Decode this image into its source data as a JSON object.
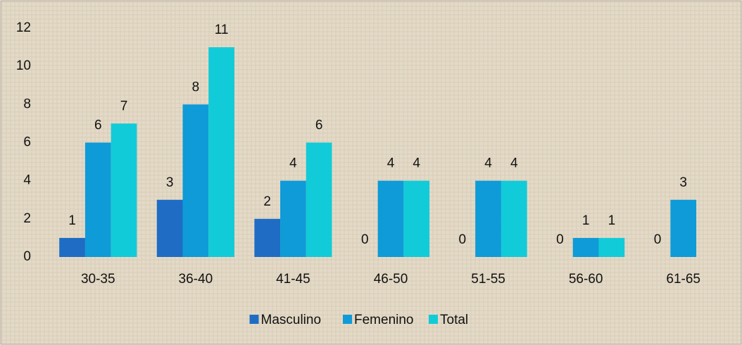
{
  "chart_data": {
    "type": "bar",
    "categories": [
      "30-35",
      "36-40",
      "41-45",
      "46-50",
      "51-55",
      "56-60",
      "61-65"
    ],
    "series": [
      {
        "name": "Masculino",
        "color": "#1f6cc4",
        "values": [
          1,
          3,
          2,
          0,
          0,
          0,
          0
        ]
      },
      {
        "name": "Femenino",
        "color": "#0e9bd7",
        "values": [
          6,
          8,
          4,
          4,
          4,
          1,
          3
        ]
      },
      {
        "name": "Total",
        "color": "#12cbd8",
        "values": [
          7,
          11,
          6,
          4,
          4,
          1,
          null
        ]
      }
    ],
    "ylim": [
      0,
      12
    ],
    "yticks": [
      0,
      2,
      4,
      6,
      8,
      10,
      12
    ],
    "grid": false,
    "legend": "bottom"
  }
}
